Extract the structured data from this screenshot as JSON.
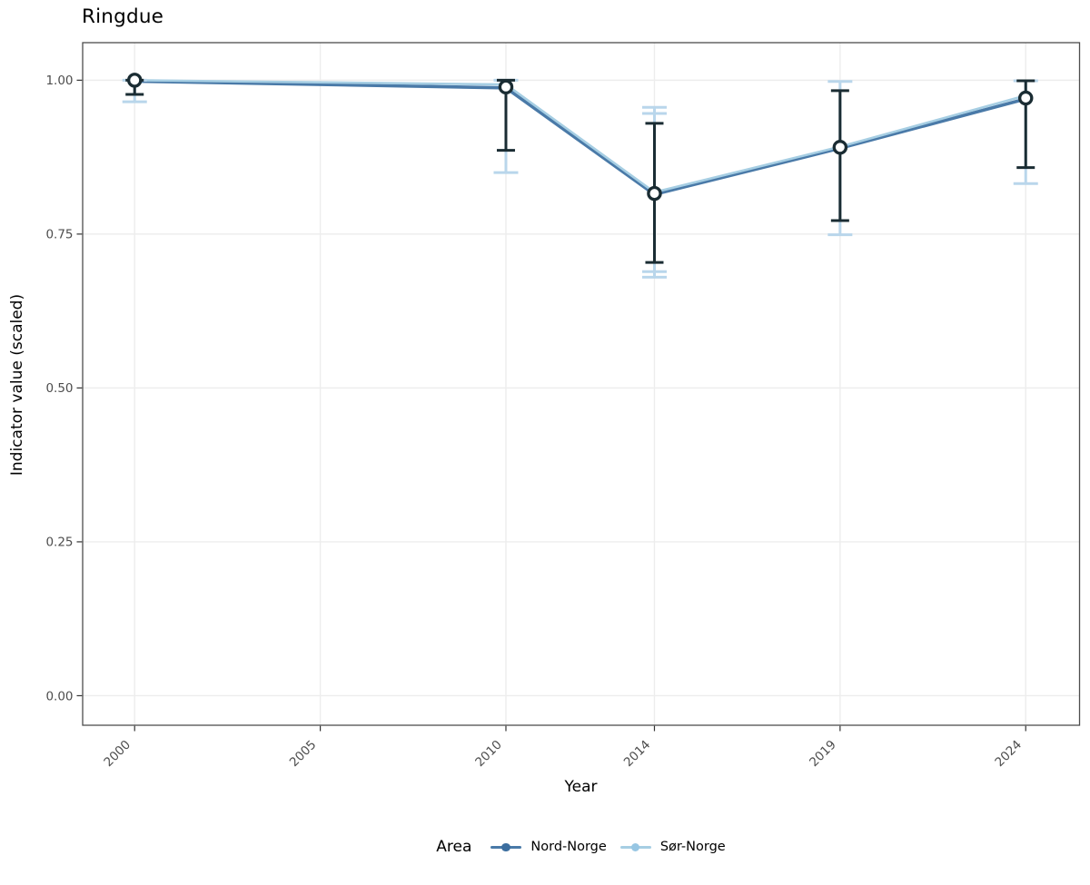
{
  "chart_data": {
    "type": "line",
    "title": "Ringdue",
    "xlabel": "Year",
    "ylabel": "Indicator value (scaled)",
    "legend_title": "Area",
    "legend_position": "bottom",
    "grid": "major-only",
    "xlim": [
      1998.6,
      2025.45
    ],
    "ylim": [
      -0.048,
      1.061
    ],
    "x_ticks": [
      {
        "value": 2000,
        "label": "2000"
      },
      {
        "value": 2005,
        "label": "2005"
      },
      {
        "value": 2010,
        "label": "2010"
      },
      {
        "value": 2014,
        "label": "2014"
      },
      {
        "value": 2019,
        "label": "2019"
      },
      {
        "value": 2024,
        "label": "2024"
      }
    ],
    "y_ticks": [
      {
        "value": 0.0,
        "label": "0.00"
      },
      {
        "value": 0.25,
        "label": "0.25"
      },
      {
        "value": 0.5,
        "label": "0.50"
      },
      {
        "value": 0.75,
        "label": "0.75"
      },
      {
        "value": 1.0,
        "label": "1.00"
      }
    ],
    "colors": {
      "grid": "#ededed",
      "panel_border": "#4d4d4d",
      "tick_mark": "#333333",
      "tick_label": "#4d4d4d",
      "text": "#000000",
      "background": "#ffffff"
    },
    "series": [
      {
        "name": "Nord-Norge",
        "color": "#4a7aa8",
        "key_dot_color": "#3c6e9f",
        "errorbar_color": "#1a2c33",
        "marker": "open-circle",
        "cap_halfwidth": 10,
        "points": [
          {
            "x": 2000,
            "y": 1.0,
            "lo": 0.977,
            "hi": 1.0
          },
          {
            "x": 2010,
            "y": 0.989,
            "lo": 0.886,
            "hi": 1.0
          },
          {
            "x": 2014,
            "y": 0.816,
            "lo": 0.704,
            "hi": 0.93
          },
          {
            "x": 2019,
            "y": 0.891,
            "lo": 0.772,
            "hi": 0.983
          },
          {
            "x": 2024,
            "y": 0.971,
            "lo": 0.858,
            "hi": 0.999
          }
        ]
      },
      {
        "name": "Sør-Norge",
        "color": "#a6cee3",
        "key_dot_color": "#97c6e3",
        "errorbar_color": "#b9d6eb",
        "marker": "filled-circle",
        "cap_halfwidth": 13.5,
        "points": [
          {
            "x": 2000,
            "y": 1.0,
            "lo": 0.965,
            "hi": 1.0
          },
          {
            "x": 2010,
            "y": 0.993,
            "lo": 0.85,
            "hi": 1.0
          },
          {
            "x": 2014,
            "y": 0.818,
            "lo": 0.68,
            "hi": 0.956,
            "lo2": 0.689,
            "hi2": 0.946
          },
          {
            "x": 2019,
            "y": 0.892,
            "lo": 0.749,
            "hi": 0.998
          },
          {
            "x": 2024,
            "y": 0.975,
            "lo": 0.832,
            "hi": 0.999
          }
        ]
      }
    ]
  }
}
